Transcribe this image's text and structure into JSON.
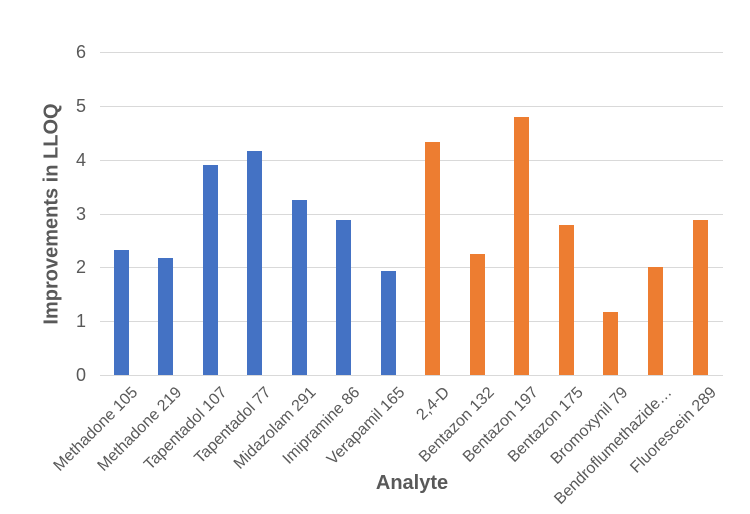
{
  "chart_data": {
    "type": "bar",
    "title": "",
    "xlabel": "Analyte",
    "ylabel": "Improvements in LLOQ",
    "ylim": [
      0,
      6
    ],
    "yticks": [
      "0",
      "1",
      "2",
      "3",
      "4",
      "5",
      "6"
    ],
    "grid": "horizontal",
    "legend": "none",
    "categories": [
      "Methadone 105",
      "Methadone 219",
      "Tapentadol 107",
      "Tapentadol 77",
      "Midazolam 291",
      "Imipramine 86",
      "Verapamil 165",
      "2,4-D",
      "Bentazon 132",
      "Bentazon 197",
      "Bentazon 175",
      "Bromoxynil 79",
      "Bendroflumethazide…",
      "Fluorescein 289"
    ],
    "values": [
      2.33,
      2.17,
      3.9,
      4.17,
      3.25,
      2.88,
      1.93,
      4.33,
      2.24,
      4.8,
      2.78,
      1.17,
      2.0,
      2.88
    ],
    "bar_colors": [
      "#4472C4",
      "#4472C4",
      "#4472C4",
      "#4472C4",
      "#4472C4",
      "#4472C4",
      "#4472C4",
      "#ED7D31",
      "#ED7D31",
      "#ED7D31",
      "#ED7D31",
      "#ED7D31",
      "#ED7D31",
      "#ED7D31"
    ]
  },
  "colors": {
    "blue_series": "#4472C4",
    "orange_series": "#ED7D31",
    "gridline": "#D9D9D9",
    "axis_text": "#595959",
    "background": "#FFFFFF"
  }
}
